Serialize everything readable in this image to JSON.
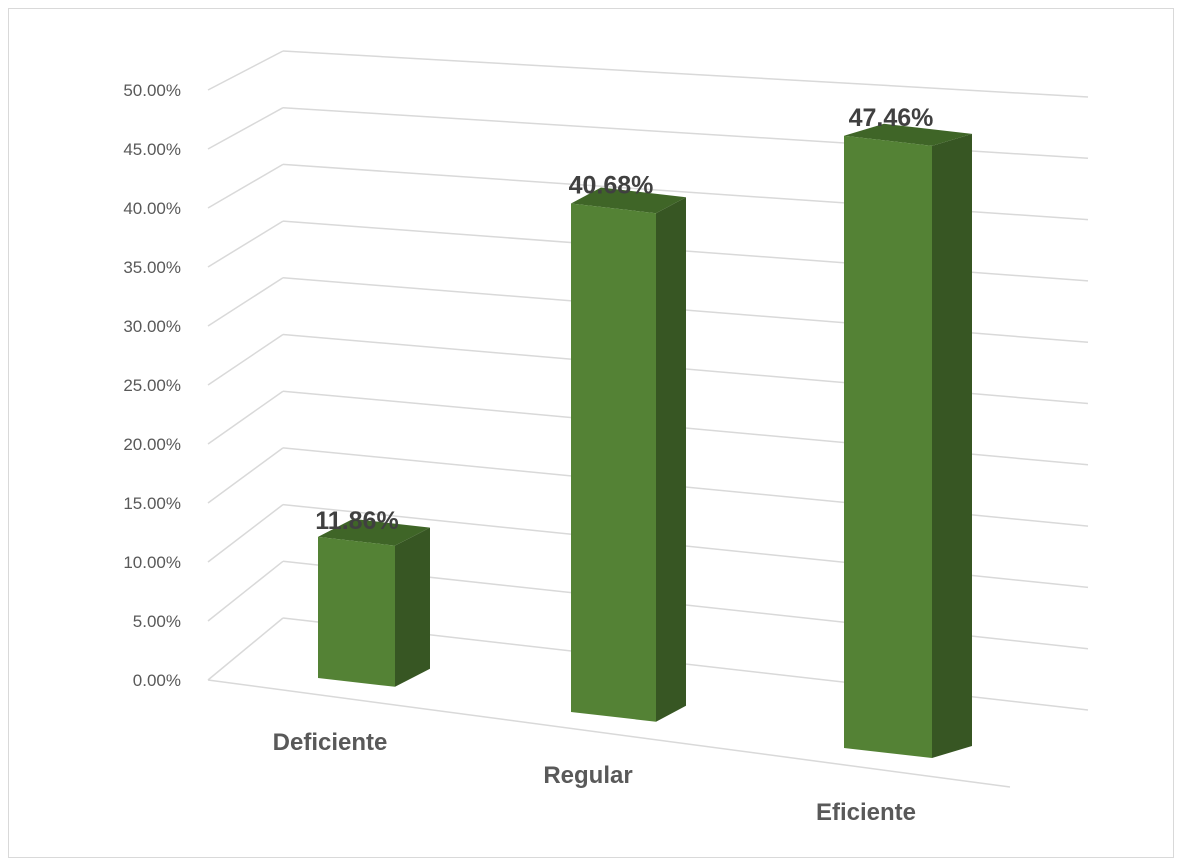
{
  "chart_data": {
    "type": "bar",
    "categories": [
      "Deficiente",
      "Regular",
      "Eficiente"
    ],
    "values": [
      11.86,
      40.68,
      47.46
    ],
    "value_labels": [
      "11.86%",
      "40.68%",
      "47.46%"
    ],
    "ylim": [
      0,
      50
    ],
    "yticks": [
      "0.00%",
      "5.00%",
      "10.00%",
      "15.00%",
      "20.00%",
      "25.00%",
      "30.00%",
      "35.00%",
      "40.00%",
      "45.00%",
      "50.00%"
    ],
    "grid": true,
    "legend": "none",
    "style": "3d-column",
    "colors": {
      "front": "#548235",
      "side": "#375623",
      "top": "#3f6527",
      "grid": "#d9d9d9",
      "text": "#595959",
      "label": "#404040"
    }
  }
}
